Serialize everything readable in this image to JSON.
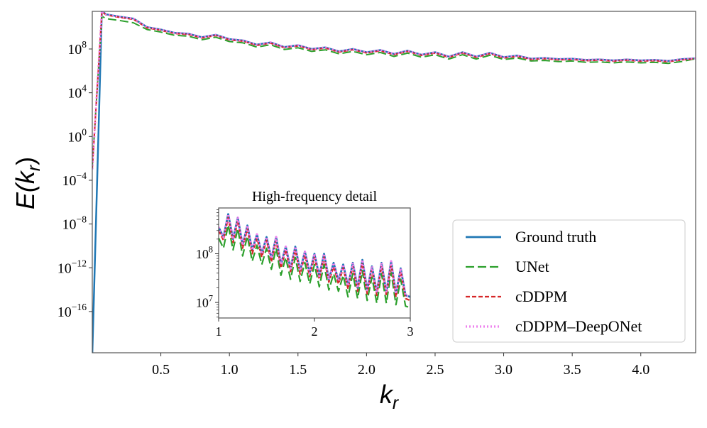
{
  "chart_data": [
    {
      "type": "line",
      "xlabel": "k_r",
      "ylabel": "E(k_r)",
      "xscale": "linear",
      "yscale": "log",
      "xlim": [
        0.0,
        4.4
      ],
      "ylim": [
        1.7e-20,
        275000000000.0
      ],
      "xticks": [
        0.5,
        1.0,
        1.5,
        2.0,
        2.5,
        3.0,
        3.5,
        4.0
      ],
      "xtick_labels": [
        "0.5",
        "1.0",
        "1.5",
        "2.0",
        "2.5",
        "3.0",
        "3.5",
        "4.0"
      ],
      "yticks_exp": [
        8,
        4,
        0,
        -4,
        -8,
        -12,
        -16
      ],
      "grid": false,
      "legend_position": "lower-right",
      "x": [
        0,
        0.07,
        0.1,
        0.2,
        0.3,
        0.4,
        0.5,
        0.6,
        0.7,
        0.8,
        0.9,
        1.0,
        1.1,
        1.2,
        1.3,
        1.4,
        1.5,
        1.6,
        1.7,
        1.8,
        1.9,
        2.0,
        2.1,
        2.2,
        2.3,
        2.4,
        2.5,
        2.6,
        2.7,
        2.8,
        2.9,
        3.0,
        3.1,
        3.2,
        3.3,
        3.4,
        3.5,
        3.6,
        3.7,
        3.8,
        3.9,
        4.0,
        4.1,
        4.2,
        4.3,
        4.4
      ],
      "series": [
        {
          "name": "Ground truth",
          "color": "#1f77b4",
          "style": "solid",
          "values": [
            1e-20,
            300000000000.0,
            150000000000.0,
            90000000000.0,
            60000000000.0,
            10000000000.0,
            6000000000.0,
            3000000000.0,
            2500000000.0,
            1200000000.0,
            2000000000.0,
            800000000.0,
            600000000.0,
            250000000.0,
            400000000.0,
            150000000.0,
            220000000.0,
            100000000.0,
            140000000.0,
            60000000.0,
            100000000.0,
            50000000.0,
            80000000.0,
            35000000.0,
            70000000.0,
            30000000.0,
            50000000.0,
            20000000.0,
            50000000.0,
            20000000.0,
            45000000.0,
            18000000.0,
            25000000.0,
            13000000.0,
            15000000.0,
            12000000.0,
            13000000.0,
            10000000.0,
            11000000.0,
            9000000.0,
            11000000.0,
            9000000.0,
            10000000.0,
            8000000.0,
            12000000.0,
            14000000.0
          ]
        },
        {
          "name": "UNet",
          "color": "#2ca02c",
          "style": "longdash",
          "values": [
            0.002,
            100000000000.0,
            60000000000.0,
            40000000000.0,
            25000000000.0,
            6000000000.0,
            3500000000.0,
            1800000000.0,
            1500000000.0,
            700000000.0,
            1200000000.0,
            480000000.0,
            360000000.0,
            150000000.0,
            240000000.0,
            90000000.0,
            130000000.0,
            60000000.0,
            84000000.0,
            36000000.0,
            60000000.0,
            30000000.0,
            48000000.0,
            21000000.0,
            42000000.0,
            18000000.0,
            30000000.0,
            12000000.0,
            30000000.0,
            12000000.0,
            27000000.0,
            11000000.0,
            15000000.0,
            8000000.0,
            9000000.0,
            7000000.0,
            8000000.0,
            6000000.0,
            6600000.0,
            5400000.0,
            6600000.0,
            5400000.0,
            6000000.0,
            4800000.0,
            7200000.0,
            13000000.0
          ]
        },
        {
          "name": "cDDPM",
          "color": "#d62728",
          "style": "dash",
          "values": [
            0.001,
            260000000000.0,
            130000000000.0,
            77000000000.0,
            51000000000.0,
            8500000000.0,
            5100000000.0,
            2600000000.0,
            2100000000.0,
            1000000000.0,
            1700000000.0,
            680000000.0,
            510000000.0,
            210000000.0,
            340000000.0,
            130000000.0,
            190000000.0,
            85000000.0,
            120000000.0,
            51000000.0,
            85000000.0,
            43000000.0,
            68000000.0,
            30000000.0,
            60000000.0,
            26000000.0,
            43000000.0,
            17000000.0,
            43000000.0,
            17000000.0,
            38000000.0,
            15000000.0,
            21000000.0,
            11000000.0,
            13000000.0,
            10000000.0,
            11000000.0,
            8500000.0,
            9400000.0,
            7700000.0,
            9400000.0,
            7700000.0,
            8500000.0,
            6800000.0,
            10000000.0,
            13000000.0
          ]
        },
        {
          "name": "cDDPM–DeepONet",
          "color": "#ee82ee",
          "style": "dot",
          "values": [
            0.001,
            300000000000.0,
            150000000000.0,
            90000000000.0,
            60000000000.0,
            10000000000.0,
            6000000000.0,
            3000000000.0,
            2500000000.0,
            1200000000.0,
            2000000000.0,
            800000000.0,
            600000000.0,
            250000000.0,
            400000000.0,
            150000000.0,
            220000000.0,
            100000000.0,
            140000000.0,
            60000000.0,
            100000000.0,
            50000000.0,
            80000000.0,
            35000000.0,
            70000000.0,
            30000000.0,
            50000000.0,
            20000000.0,
            50000000.0,
            20000000.0,
            45000000.0,
            18000000.0,
            25000000.0,
            13000000.0,
            15000000.0,
            12000000.0,
            13000000.0,
            10000000.0,
            11000000.0,
            9000000.0,
            11000000.0,
            9000000.0,
            10000000.0,
            8000000.0,
            12000000.0,
            14000000.0
          ]
        }
      ]
    },
    {
      "type": "line",
      "title": "High-frequency detail",
      "xscale": "linear",
      "yscale": "log",
      "xlim": [
        1,
        3
      ],
      "ylim": [
        4800000.0,
        870000000.0
      ],
      "xticks": [
        1,
        2,
        3
      ],
      "xtick_labels": [
        "1",
        "2",
        "3"
      ],
      "yticks_exp": [
        8,
        7
      ],
      "x": [
        1.0,
        1.05,
        1.1,
        1.15,
        1.2,
        1.25,
        1.3,
        1.35,
        1.4,
        1.45,
        1.5,
        1.55,
        1.6,
        1.65,
        1.7,
        1.75,
        1.8,
        1.85,
        1.9,
        1.95,
        2.0,
        2.05,
        2.1,
        2.15,
        2.2,
        2.25,
        2.3,
        2.35,
        2.4,
        2.45,
        2.5,
        2.55,
        2.6,
        2.65,
        2.7,
        2.75,
        2.8,
        2.85,
        2.9,
        2.95,
        3.0
      ],
      "series": [
        {
          "color": "#1f77b4",
          "style": "solid",
          "values": [
            350000000.0,
            220000000.0,
            650000000.0,
            200000000.0,
            550000000.0,
            150000000.0,
            380000000.0,
            120000000.0,
            250000000.0,
            100000000.0,
            220000000.0,
            80000000.0,
            220000000.0,
            60000000.0,
            140000000.0,
            50000000.0,
            140000000.0,
            45000000.0,
            110000000.0,
            40000000.0,
            100000000.0,
            35000000.0,
            100000000.0,
            30000000.0,
            65000000.0,
            28000000.0,
            60000000.0,
            22000000.0,
            65000000.0,
            20000000.0,
            75000000.0,
            18000000.0,
            55000000.0,
            16000000.0,
            65000000.0,
            16000000.0,
            70000000.0,
            15000000.0,
            50000000.0,
            14000000.0,
            13000000.0
          ]
        },
        {
          "color": "#2ca02c",
          "style": "longdash",
          "values": [
            210000000.0,
            130000000.0,
            390000000.0,
            120000000.0,
            330000000.0,
            90000000.0,
            230000000.0,
            70000000.0,
            150000000.0,
            60000000.0,
            130000000.0,
            48000000.0,
            130000000.0,
            36000000.0,
            84000000.0,
            30000000.0,
            84000000.0,
            27000000.0,
            66000000.0,
            24000000.0,
            60000000.0,
            21000000.0,
            60000000.0,
            18000000.0,
            39000000.0,
            17000000.0,
            36000000.0,
            13000000.0,
            39000000.0,
            12000000.0,
            45000000.0,
            11000000.0,
            33000000.0,
            9600000.0,
            39000000.0,
            9600000.0,
            42000000.0,
            9000000.0,
            30000000.0,
            8400000.0,
            7800000.0
          ]
        },
        {
          "color": "#d62728",
          "style": "dash",
          "values": [
            300000000.0,
            190000000.0,
            550000000.0,
            170000000.0,
            470000000.0,
            130000000.0,
            320000000.0,
            100000000.0,
            210000000.0,
            85000000.0,
            190000000.0,
            68000000.0,
            190000000.0,
            51000000.0,
            120000000.0,
            43000000.0,
            120000000.0,
            38000000.0,
            94000000.0,
            34000000.0,
            85000000.0,
            30000000.0,
            85000000.0,
            26000000.0,
            55000000.0,
            24000000.0,
            51000000.0,
            19000000.0,
            55000000.0,
            17000000.0,
            64000000.0,
            15000000.0,
            47000000.0,
            14000000.0,
            55000000.0,
            14000000.0,
            60000000.0,
            13000000.0,
            43000000.0,
            12000000.0,
            11000000.0
          ]
        },
        {
          "color": "#ee82ee",
          "style": "dot",
          "values": [
            350000000.0,
            220000000.0,
            650000000.0,
            200000000.0,
            550000000.0,
            150000000.0,
            380000000.0,
            120000000.0,
            250000000.0,
            100000000.0,
            220000000.0,
            80000000.0,
            220000000.0,
            60000000.0,
            140000000.0,
            50000000.0,
            140000000.0,
            45000000.0,
            110000000.0,
            40000000.0,
            100000000.0,
            35000000.0,
            100000000.0,
            30000000.0,
            65000000.0,
            28000000.0,
            60000000.0,
            22000000.0,
            65000000.0,
            20000000.0,
            75000000.0,
            18000000.0,
            55000000.0,
            16000000.0,
            65000000.0,
            16000000.0,
            70000000.0,
            15000000.0,
            50000000.0,
            14000000.0,
            13000000.0
          ]
        }
      ]
    }
  ]
}
